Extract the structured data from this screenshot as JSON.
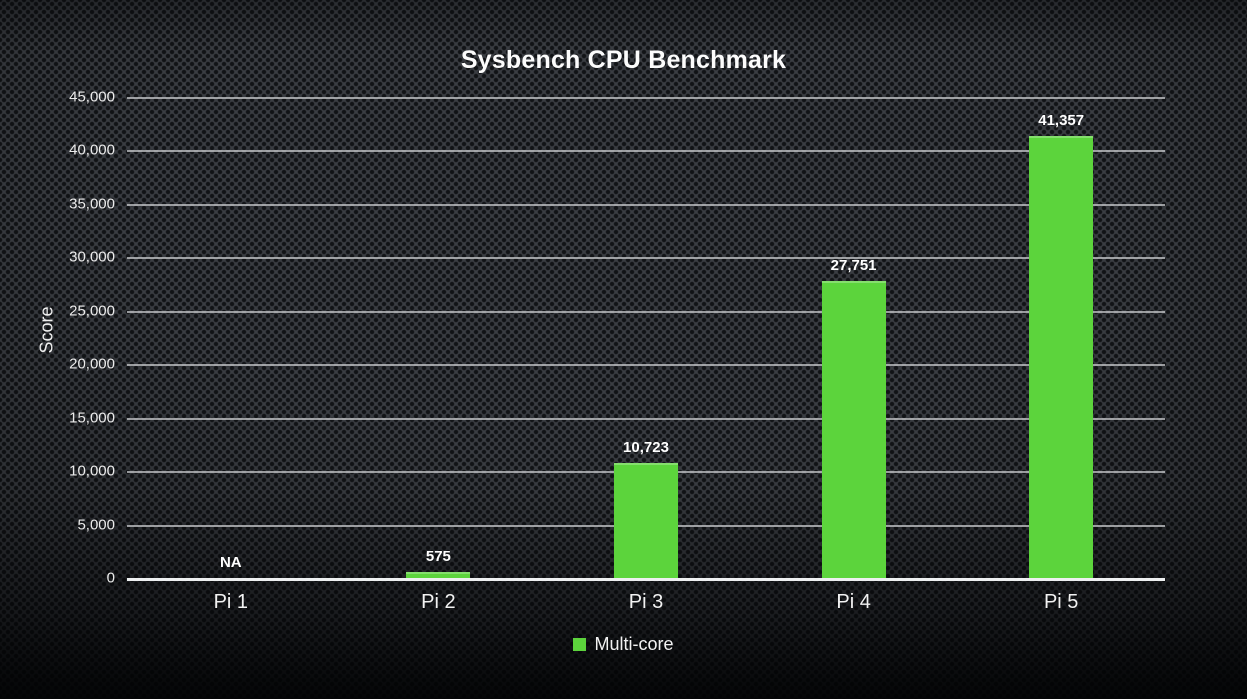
{
  "chart_data": {
    "type": "bar",
    "title": "Sysbench CPU Benchmark",
    "ylabel": "Score",
    "xlabel": "",
    "categories": [
      "Pi 1",
      "Pi 2",
      "Pi 3",
      "Pi 4",
      "Pi 5"
    ],
    "values": [
      null,
      575,
      10723,
      27751,
      41357
    ],
    "value_labels": [
      "NA",
      "575",
      "10,723",
      "27,751",
      "41,357"
    ],
    "ylim": [
      0,
      45000
    ],
    "ytick_values": [
      0,
      5000,
      10000,
      15000,
      20000,
      25000,
      30000,
      35000,
      40000,
      45000
    ],
    "ytick_labels": [
      "0",
      "5,000",
      "10,000",
      "15,000",
      "20,000",
      "25,000",
      "30,000",
      "35,000",
      "40,000",
      "45,000"
    ],
    "grid": "horizontal",
    "bar_color": "#5cd43c",
    "legend": {
      "position": "bottom",
      "entries": [
        {
          "label": "Multi-core",
          "color": "#5cd43c"
        }
      ]
    },
    "colors": {
      "background": "#3a3d42",
      "gridline": "#ced0d2",
      "axis_line": "#eef0f1",
      "text": "#f2f2f2"
    }
  }
}
